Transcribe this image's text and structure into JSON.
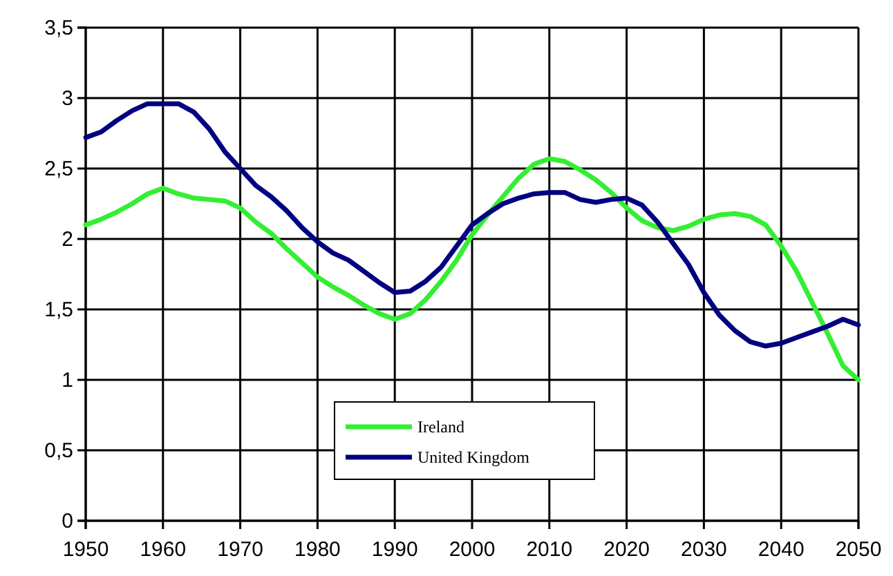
{
  "chart_data": {
    "type": "line",
    "x": [
      1950,
      1952,
      1954,
      1956,
      1958,
      1960,
      1962,
      1964,
      1966,
      1968,
      1970,
      1972,
      1974,
      1976,
      1978,
      1980,
      1982,
      1984,
      1986,
      1988,
      1990,
      1992,
      1994,
      1996,
      1998,
      2000,
      2002,
      2004,
      2006,
      2008,
      2010,
      2012,
      2014,
      2016,
      2018,
      2020,
      2022,
      2024,
      2026,
      2028,
      2030,
      2032,
      2034,
      2036,
      2038,
      2040,
      2042,
      2044,
      2046,
      2048,
      2050
    ],
    "series": [
      {
        "name": "Ireland",
        "color": "#33ee33",
        "values": [
          2.1,
          2.14,
          2.19,
          2.25,
          2.32,
          2.36,
          2.32,
          2.29,
          2.28,
          2.27,
          2.22,
          2.12,
          2.04,
          1.93,
          1.83,
          1.73,
          1.66,
          1.6,
          1.53,
          1.47,
          1.43,
          1.47,
          1.57,
          1.7,
          1.85,
          2.03,
          2.17,
          2.3,
          2.43,
          2.53,
          2.57,
          2.55,
          2.49,
          2.42,
          2.33,
          2.22,
          2.13,
          2.08,
          2.06,
          2.09,
          2.14,
          2.17,
          2.18,
          2.16,
          2.1,
          1.95,
          1.77,
          1.55,
          1.33,
          1.1,
          1.0
        ]
      },
      {
        "name": "United Kingdom",
        "color": "#000080",
        "values": [
          2.72,
          2.76,
          2.84,
          2.91,
          2.96,
          2.96,
          2.96,
          2.9,
          2.78,
          2.62,
          2.5,
          2.38,
          2.3,
          2.2,
          2.08,
          1.98,
          1.9,
          1.85,
          1.77,
          1.69,
          1.62,
          1.63,
          1.7,
          1.8,
          1.95,
          2.1,
          2.18,
          2.25,
          2.29,
          2.32,
          2.33,
          2.33,
          2.28,
          2.26,
          2.28,
          2.29,
          2.24,
          2.12,
          1.97,
          1.82,
          1.62,
          1.46,
          1.35,
          1.27,
          1.24,
          1.26,
          1.3,
          1.34,
          1.38,
          1.43,
          1.39
        ]
      }
    ],
    "xlim": [
      1950,
      2050
    ],
    "xticks": [
      1950,
      1960,
      1970,
      1980,
      1990,
      2000,
      2010,
      2020,
      2030,
      2040,
      2050
    ],
    "ylim": [
      0,
      3.5
    ],
    "yticks": [
      0,
      {
        "value": 0.5,
        "label": "0,5"
      },
      1,
      {
        "value": 1.5,
        "label": "1,5"
      },
      2,
      {
        "value": 2.5,
        "label": "2,5"
      },
      3,
      {
        "value": 3.5,
        "label": "3,5"
      }
    ],
    "grid": true,
    "legend": "bottom",
    "marker": "none",
    "line_style": "solid"
  }
}
